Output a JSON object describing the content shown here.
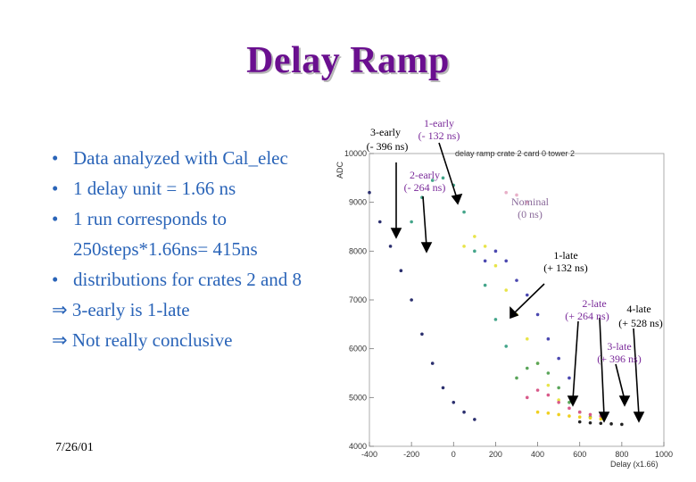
{
  "slide": {
    "title": "Delay Ramp",
    "bullets": [
      "Data analyzed with Cal_elec",
      "1 delay unit = 1.66 ns",
      "1 run corresponds to",
      "250steps*1.66ns= 415ns",
      "distributions for crates 2 and 8"
    ],
    "conclusions": [
      "3-early is 1-late",
      "Not really conclusive"
    ],
    "implies_symbol": "⇒",
    "bullet_symbol": "•",
    "date": "7/26/01",
    "colors": {
      "title": "#6a0f8f",
      "bullets": "#2a64b8",
      "annotation": "#7a2a9a"
    }
  },
  "chart_data": {
    "type": "scatter",
    "title": "delay ramp crate 2 card 0 tower 2",
    "xlabel": "Delay (x1.66)",
    "ylabel": "ADC",
    "xlim": [
      -400,
      1000
    ],
    "ylim": [
      4000,
      10000
    ],
    "x_ticks": [
      -400,
      -200,
      0,
      200,
      400,
      600,
      800,
      1000
    ],
    "y_ticks": [
      4000,
      5000,
      6000,
      7000,
      8000,
      9000,
      10000
    ],
    "x_tick_labels": [
      "-400",
      "-200",
      "0",
      "200",
      "400",
      "600",
      "800",
      "1000"
    ],
    "y_tick_labels": [
      "4000",
      "5000",
      "6000",
      "7000",
      "8000",
      "9000",
      "10000"
    ],
    "series": [
      {
        "color": "#2b2f6e",
        "points": [
          [
            -400,
            9200
          ],
          [
            -350,
            8600
          ],
          [
            -300,
            8100
          ],
          [
            -250,
            7600
          ],
          [
            -200,
            7000
          ],
          [
            -150,
            6300
          ],
          [
            -100,
            5700
          ],
          [
            -50,
            5200
          ],
          [
            0,
            4900
          ],
          [
            50,
            4700
          ],
          [
            100,
            4550
          ]
        ]
      },
      {
        "color": "#44a58a",
        "points": [
          [
            -200,
            8600
          ],
          [
            -150,
            9100
          ],
          [
            -100,
            9450
          ],
          [
            -50,
            9500
          ],
          [
            0,
            9350
          ],
          [
            50,
            8800
          ],
          [
            100,
            8000
          ],
          [
            150,
            7300
          ],
          [
            200,
            6600
          ],
          [
            250,
            6050
          ]
        ]
      },
      {
        "color": "#e8e44a",
        "points": [
          [
            50,
            8100
          ],
          [
            100,
            8300
          ],
          [
            150,
            8100
          ],
          [
            200,
            7700
          ],
          [
            250,
            7200
          ],
          [
            300,
            6700
          ],
          [
            350,
            6200
          ],
          [
            400,
            5700
          ],
          [
            450,
            5250
          ],
          [
            500,
            4950
          ]
        ]
      },
      {
        "color": "#4b48b0",
        "points": [
          [
            150,
            7800
          ],
          [
            200,
            8000
          ],
          [
            250,
            7800
          ],
          [
            300,
            7400
          ],
          [
            350,
            7100
          ],
          [
            400,
            6700
          ],
          [
            450,
            6200
          ],
          [
            500,
            5800
          ],
          [
            550,
            5400
          ]
        ]
      },
      {
        "color": "#e8b0c8",
        "points": [
          [
            250,
            9200
          ],
          [
            300,
            9150
          ],
          [
            350,
            9000
          ]
        ]
      },
      {
        "color": "#5aa55a",
        "points": [
          [
            300,
            5400
          ],
          [
            350,
            5600
          ],
          [
            400,
            5700
          ],
          [
            450,
            5500
          ],
          [
            500,
            5200
          ],
          [
            550,
            4900
          ],
          [
            600,
            4700
          ],
          [
            650,
            4600
          ]
        ]
      },
      {
        "color": "#d85a8a",
        "points": [
          [
            350,
            5000
          ],
          [
            400,
            5150
          ],
          [
            450,
            5050
          ],
          [
            500,
            4900
          ],
          [
            550,
            4780
          ],
          [
            600,
            4700
          ],
          [
            650,
            4650
          ],
          [
            700,
            4620
          ]
        ]
      },
      {
        "color": "#f0d020",
        "points": [
          [
            400,
            4700
          ],
          [
            450,
            4680
          ],
          [
            500,
            4650
          ],
          [
            550,
            4620
          ],
          [
            600,
            4600
          ],
          [
            650,
            4580
          ],
          [
            700,
            4560
          ]
        ]
      },
      {
        "color": "#222222",
        "points": [
          [
            600,
            4500
          ],
          [
            650,
            4480
          ],
          [
            700,
            4470
          ],
          [
            750,
            4460
          ],
          [
            800,
            4450
          ]
        ]
      }
    ],
    "annotations": [
      {
        "text": "3-early",
        "sub": "(- 396 ns)"
      },
      {
        "text": "1-early",
        "sub": "(- 132 ns)"
      },
      {
        "text": "2-early",
        "sub": "(- 264 ns)"
      },
      {
        "text": "Nominal",
        "sub": "(0 ns)"
      },
      {
        "text": "1-late",
        "sub": "(+ 132 ns)"
      },
      {
        "text": "2-late",
        "sub": "(+ 264 ns)"
      },
      {
        "text": "4-late",
        "sub": "(+ 528 ns)"
      },
      {
        "text": "3-late",
        "sub": "(+ 396 ns)"
      }
    ]
  }
}
